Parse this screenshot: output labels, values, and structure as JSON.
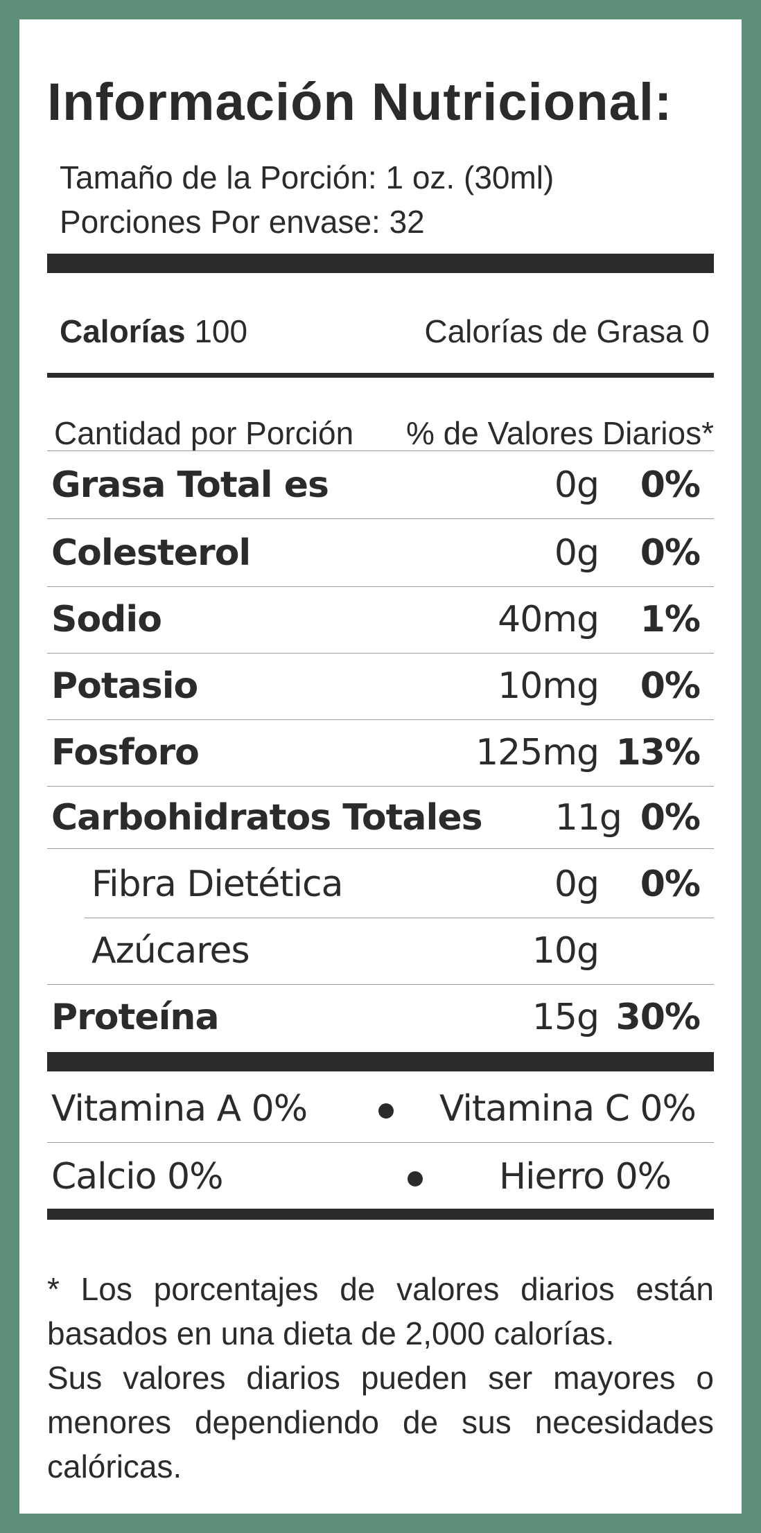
{
  "title": "Información Nutricional:",
  "serving": {
    "size": "Tamaño de la Porción: 1  oz. (30ml)",
    "per_container": "Porciones Por envase: 32"
  },
  "calories": {
    "label": "Calorías",
    "value": "100",
    "fat_calories": "Calorías de Grasa 0"
  },
  "header": {
    "amount": "Cantidad por Porción",
    "daily_value": "% de Valores Diarios*"
  },
  "nutrients": [
    {
      "name": "Grasa Total es",
      "amount": "0g",
      "pct": "0%"
    },
    {
      "name": "Colesterol",
      "amount": "0g",
      "pct": "0%"
    },
    {
      "name": "Sodio",
      "amount": "40mg",
      "pct": "1%"
    },
    {
      "name": "Potasio",
      "amount": "10mg",
      "pct": "0%"
    },
    {
      "name": "Fosforo",
      "amount": "125mg",
      "pct": "13%"
    },
    {
      "name": "Carbohidratos Totales",
      "amount": "11g",
      "pct": "0%"
    },
    {
      "name": "Fibra Dietética",
      "amount": "0g",
      "pct": "0%"
    },
    {
      "name": "Azúcares",
      "amount": "10g",
      "pct": ""
    },
    {
      "name": "Proteína",
      "amount": "15g",
      "pct": "30%"
    }
  ],
  "vitamins": {
    "vitamin_a": "Vitamina A 0%",
    "vitamin_c": "Vitamina C 0%",
    "calcium": "Calcio 0%",
    "iron": "Hierro 0%"
  },
  "footnote": {
    "line1": "* Los porcentajes de valores diarios están basados en una dieta de 2,000 calorías.",
    "line2": "Sus valores diarios pueden ser mayores o menores dependiendo de sus necesidades calóricas."
  },
  "colors": {
    "border": "#5e9079",
    "ink": "#2b2b2b"
  }
}
